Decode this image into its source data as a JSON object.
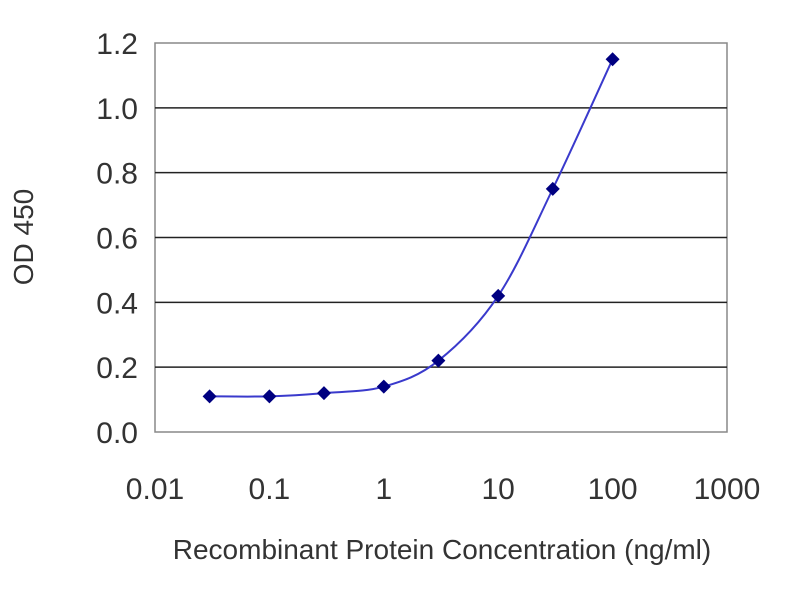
{
  "chart_data": {
    "type": "line",
    "x_scale": "log",
    "xlabel": "Recombinant Protein Concentration (ng/ml)",
    "ylabel": "OD 450",
    "xlim": [
      0.01,
      1000
    ],
    "ylim": [
      0,
      1.2
    ],
    "x_ticks": [
      0.01,
      0.1,
      1,
      10,
      100,
      1000
    ],
    "x_tick_labels": [
      "0.01",
      "0.1",
      "1",
      "10",
      "100",
      "1000"
    ],
    "y_ticks": [
      0,
      0.2,
      0.4,
      0.6,
      0.8,
      1.0,
      1.2
    ],
    "y_tick_labels": [
      "0.0",
      "0.2",
      "0.4",
      "0.6",
      "0.8",
      "1.0",
      "1.2"
    ],
    "grid": "horizontal",
    "line_color": "#3a3acc",
    "marker_color": "#000080",
    "series": [
      {
        "x": [
          0.03,
          0.1,
          0.3,
          1,
          3,
          10,
          30,
          100
        ],
        "y": [
          0.11,
          0.11,
          0.12,
          0.14,
          0.22,
          0.42,
          0.75,
          1.15
        ]
      }
    ]
  }
}
